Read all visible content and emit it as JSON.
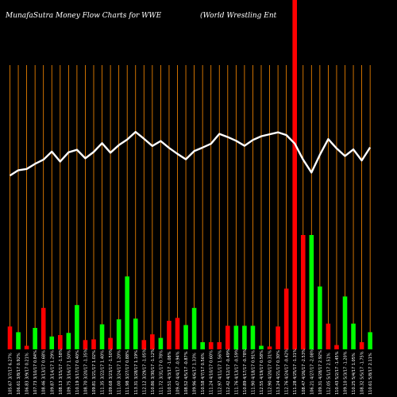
{
  "header": {
    "title": "MunafaSutra  Money Flow  Charts for WWE",
    "company": "(World Wrestling Ent"
  },
  "chart_data": {
    "type": "bar",
    "title": "MunafaSutra  Money Flow  Charts for WWE",
    "subtitle": "(World Wrestling Ent",
    "grid": true,
    "legend": "none",
    "colors": {
      "up": "#00ff00",
      "down": "#ff0000",
      "line": "#ffffff",
      "grid": "#ff8c00",
      "background": "#000000"
    },
    "categories": [
      "105.67 3/7/17 6.27%",
      "106.61 3/8/17 0.92%",
      "106.83 3/9/17 0.21%",
      "107.73 3/10/17 0.84%",
      "108.46 3/13/17 0.68%",
      "109.87 3/14/17 1.29%",
      "108.13 3/15/17 -1.58%",
      "109.75 3/16/17 1.50%",
      "110.19 3/17/17 0.40%",
      "108.70 3/20/17 -1.35%",
      "109.81 3/21/17 1.02%",
      "111.35 3/22/17 1.40%",
      "109.68 3/23/17 -1.50%",
      "111.00 3/24/17 1.20%",
      "111.98 3/27/17 0.88%",
      "113.31 3/28/17 1.19%",
      "112.12 3/29/17 -1.05%",
      "110.86 3/30/17 -1.12%",
      "111.72 3/31/17 0.78%",
      "110.51 4/3/17 -1.08%",
      "109.47 4/4/17 -0.94%",
      "108.52 4/5/17 -0.87%",
      "109.96 4/6/17 1.33%",
      "110.58 4/7/17 0.56%",
      "111.24 4/10/17 0.60%",
      "112.97 4/11/17 1.56%",
      "112.42 4/12/17 -0.49%",
      "111.76 4/13/17 -0.59%",
      "110.89 4/17/17 -0.78%",
      "111.90 4/18/17 0.91%",
      "112.55 4/19/17 0.58%",
      "112.90 4/20/17 0.31%",
      "113.24 4/21/17 0.30%",
      "112.76 4/24/17 -0.42%",
      "111.28 4/25/17 -1.31%",
      "108.47 4/26/17 -2.53%",
      "106.21 4/27/17 -2.08%",
      "109.31 4/28/17 2.92%",
      "112.05 5/1/17 2.51%",
      "110.43 5/2/17 -1.45%",
      "109.10 5/3/17 -1.20%",
      "110.25 5/4/17 1.05%",
      "108.32 5/5/17 -1.75%",
      "110.61 5/8/17 2.11%"
    ],
    "x_axis_labels": [
      "105.67 3/7/17 6.27%",
      "106.61 3/8/17 0.92%",
      "106.83 3/9/17 0.21%",
      "107.73 3/10/17 0.84%",
      "108.46 3/13/17 0.68%",
      "109.87 3/14/17 1.29%",
      "108.13 3/15/17 -1.58%",
      "109.75 3/16/17 1.50%",
      "110.19 3/17/17 0.40%",
      "108.70 3/20/17 -1.35%",
      "109.81 3/21/17 1.02%",
      "111.35 3/22/17 1.40%",
      "109.68 3/23/17 -1.50%",
      "111.00 3/24/17 1.20%",
      "111.98 3/27/17 0.88%",
      "113.31 3/28/17 1.19%",
      "112.12 3/29/17 -1.05%",
      "110.86 3/30/17 -1.12%",
      "111.72 3/31/17 0.78%",
      "110.51 4/3/17 -1.08%",
      "109.47 4/4/17 -0.94%",
      "108.52 4/5/17 -0.87%",
      "109.96 4/6/17 1.33%",
      "110.58 4/7/17 0.56%",
      "111.24 4/10/17 0.60%",
      "112.97 4/11/17 1.56%",
      "112.42 4/12/17 -0.49%",
      "111.76 4/13/17 -0.59%",
      "110.89 4/17/17 -0.78%",
      "111.90 4/18/17 0.91%",
      "112.55 4/19/17 0.58%",
      "112.90 4/20/17 0.31%",
      "113.24 4/21/17 0.30%",
      "112.76 4/24/17 -0.42%",
      "111.28 4/25/17 -1.31%",
      "108.47 4/26/17 -2.53%",
      "106.21 4/27/17 -2.08%",
      "109.31 4/28/17 2.92%",
      "112.05 5/1/17 2.51%",
      "110.43 5/2/17 -1.45%",
      "109.10 5/3/17 -1.20%",
      "110.25 5/4/17 1.05%",
      "108.32 5/5/17 -1.75%",
      "110.61 5/8/17 2.11%"
    ],
    "volume_max": 500,
    "series": [
      {
        "kind": "money_flow_bars",
        "directions": [
          "down",
          "up",
          "down",
          "up",
          "down",
          "up",
          "down",
          "up",
          "up",
          "down",
          "down",
          "up",
          "down",
          "up",
          "up",
          "up",
          "down",
          "down",
          "up",
          "down",
          "down",
          "up",
          "up",
          "up",
          "down",
          "down",
          "down",
          "up",
          "up",
          "up",
          "up",
          "down",
          "down",
          "down",
          "down",
          "down",
          "up",
          "up",
          "down",
          "down",
          "up",
          "up",
          "down",
          "up"
        ],
        "values": [
          32,
          24,
          5,
          30,
          58,
          18,
          20,
          23,
          62,
          13,
          14,
          35,
          16,
          42,
          102,
          43,
          13,
          21,
          16,
          40,
          44,
          34,
          58,
          10,
          10,
          10,
          33,
          33,
          33,
          33,
          5,
          4,
          32,
          85,
          500,
          160,
          160,
          88,
          36,
          6,
          74,
          36,
          10,
          24
        ]
      },
      {
        "kind": "price_line",
        "values": [
          0,
          0,
          0,
          0,
          0,
          0,
          0,
          0,
          0,
          0,
          0,
          0,
          0,
          0,
          0,
          0,
          0,
          0,
          0,
          0,
          0,
          0,
          0,
          0,
          0,
          0,
          0,
          0,
          0,
          0,
          0,
          0,
          0,
          0,
          0,
          0,
          0,
          0,
          0,
          0,
          0,
          0,
          0,
          0
        ]
      }
    ]
  }
}
